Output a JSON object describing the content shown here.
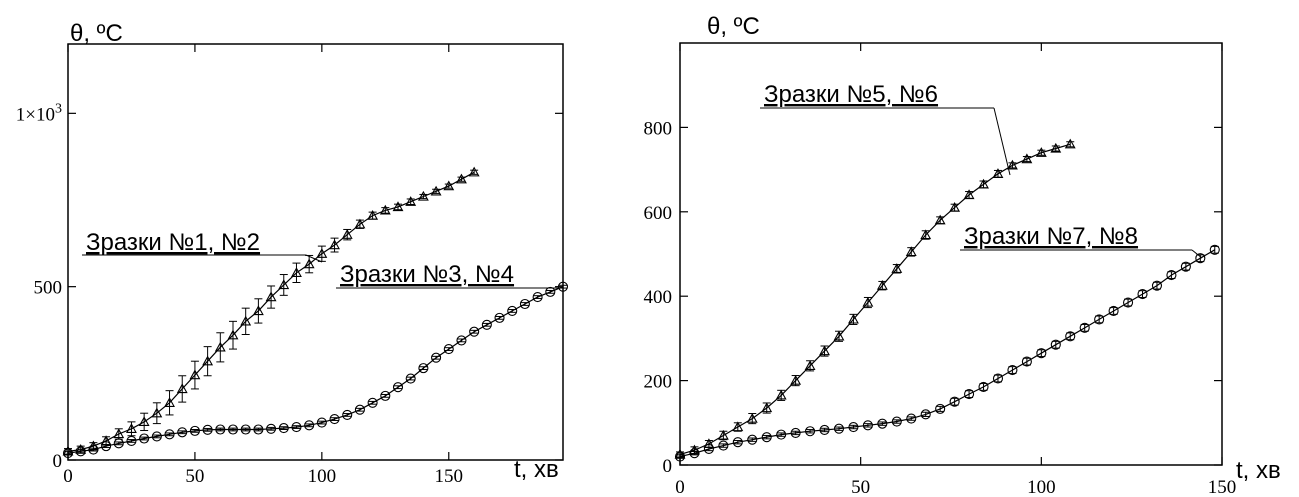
{
  "chart_data": [
    {
      "type": "line",
      "ylabel": "θ, ºC",
      "xlabel": "t, хв",
      "xlim": [
        0,
        195
      ],
      "ylim": [
        0,
        1200
      ],
      "xticks": [
        {
          "v": 0,
          "label": "0"
        },
        {
          "v": 50,
          "label": "50"
        },
        {
          "v": 100,
          "label": "100"
        },
        {
          "v": 150,
          "label": "150"
        }
      ],
      "yticks": [
        {
          "v": 0,
          "label": "0"
        },
        {
          "v": 500,
          "label": "500"
        },
        {
          "v": 1000,
          "label": "1×10",
          "sup": "3"
        }
      ],
      "grid": false,
      "series": [
        {
          "name": "Зразки №1, №2",
          "marker": "triangle",
          "x": [
            0,
            5,
            10,
            15,
            20,
            25,
            30,
            35,
            40,
            45,
            50,
            55,
            60,
            65,
            70,
            75,
            80,
            85,
            90,
            95,
            100,
            105,
            110,
            115,
            120,
            125,
            130,
            135,
            140,
            145,
            150,
            155,
            160
          ],
          "y": [
            25,
            30,
            40,
            55,
            75,
            90,
            110,
            135,
            165,
            205,
            245,
            285,
            325,
            360,
            400,
            430,
            470,
            505,
            540,
            565,
            595,
            620,
            650,
            680,
            705,
            720,
            730,
            745,
            760,
            775,
            790,
            810,
            830
          ],
          "err": [
            8,
            10,
            10,
            12,
            15,
            20,
            25,
            30,
            35,
            38,
            40,
            42,
            42,
            40,
            38,
            35,
            32,
            30,
            28,
            25,
            22,
            20,
            15,
            12,
            10,
            8,
            8,
            8,
            6,
            6,
            6,
            6,
            6
          ]
        },
        {
          "name": "Зразки №3, №4",
          "marker": "circle",
          "x": [
            0,
            5,
            10,
            15,
            20,
            25,
            30,
            35,
            40,
            45,
            50,
            55,
            60,
            65,
            70,
            75,
            80,
            85,
            90,
            95,
            100,
            105,
            110,
            115,
            120,
            125,
            130,
            135,
            140,
            145,
            150,
            155,
            160,
            165,
            170,
            175,
            180,
            185,
            190,
            195
          ],
          "y": [
            20,
            25,
            30,
            40,
            48,
            55,
            62,
            68,
            74,
            80,
            84,
            87,
            88,
            88,
            88,
            88,
            90,
            92,
            95,
            100,
            108,
            118,
            130,
            145,
            165,
            185,
            210,
            235,
            265,
            295,
            320,
            345,
            370,
            390,
            410,
            430,
            450,
            470,
            485,
            500
          ],
          "err": [
            4,
            4,
            4,
            4,
            4,
            4,
            4,
            4,
            4,
            4,
            4,
            4,
            4,
            4,
            4,
            4,
            4,
            4,
            4,
            4,
            4,
            4,
            4,
            4,
            4,
            4,
            4,
            4,
            4,
            4,
            4,
            4,
            4,
            4,
            4,
            4,
            4,
            4,
            4,
            4
          ]
        }
      ],
      "annotations": [
        {
          "text": "Зразки №1, №2"
        },
        {
          "text": "Зразки №3, №4"
        }
      ]
    },
    {
      "type": "line",
      "ylabel": "θ, ºC",
      "xlabel": "t, хв",
      "xlim": [
        0,
        150
      ],
      "ylim": [
        0,
        1000
      ],
      "xticks": [
        {
          "v": 0,
          "label": "0"
        },
        {
          "v": 50,
          "label": "50"
        },
        {
          "v": 100,
          "label": "100"
        },
        {
          "v": 150,
          "label": "150"
        }
      ],
      "yticks": [
        {
          "v": 0,
          "label": "0"
        },
        {
          "v": 200,
          "label": "200"
        },
        {
          "v": 400,
          "label": "400"
        },
        {
          "v": 600,
          "label": "600"
        },
        {
          "v": 800,
          "label": "800"
        }
      ],
      "grid": false,
      "series": [
        {
          "name": "Зразки №5, №6",
          "marker": "triangle",
          "x": [
            0,
            4,
            8,
            12,
            16,
            20,
            24,
            28,
            32,
            36,
            40,
            44,
            48,
            52,
            56,
            60,
            64,
            68,
            72,
            76,
            80,
            84,
            88,
            92,
            96,
            100,
            104,
            108
          ],
          "y": [
            25,
            35,
            50,
            70,
            90,
            110,
            135,
            165,
            200,
            235,
            270,
            305,
            345,
            385,
            425,
            465,
            505,
            545,
            580,
            610,
            640,
            665,
            690,
            710,
            725,
            740,
            750,
            760
          ],
          "err": [
            6,
            8,
            8,
            10,
            10,
            12,
            12,
            12,
            12,
            12,
            12,
            12,
            12,
            12,
            10,
            10,
            10,
            10,
            8,
            8,
            8,
            8,
            8,
            6,
            6,
            6,
            6,
            6
          ]
        },
        {
          "name": "Зразки №7, №8",
          "marker": "circle",
          "x": [
            0,
            4,
            8,
            12,
            16,
            20,
            24,
            28,
            32,
            36,
            40,
            44,
            48,
            52,
            56,
            60,
            64,
            68,
            72,
            76,
            80,
            84,
            88,
            92,
            96,
            100,
            104,
            108,
            112,
            116,
            120,
            124,
            128,
            132,
            136,
            140,
            144,
            148
          ],
          "y": [
            20,
            28,
            38,
            46,
            54,
            60,
            66,
            72,
            76,
            80,
            83,
            86,
            90,
            94,
            98,
            103,
            110,
            120,
            133,
            150,
            168,
            185,
            205,
            225,
            245,
            265,
            285,
            305,
            325,
            345,
            365,
            385,
            405,
            425,
            450,
            470,
            490,
            510
          ],
          "err": [
            4,
            4,
            4,
            4,
            4,
            4,
            4,
            4,
            4,
            4,
            4,
            4,
            4,
            4,
            4,
            4,
            4,
            5,
            6,
            8,
            8,
            8,
            8,
            8,
            8,
            8,
            8,
            8,
            8,
            8,
            8,
            8,
            8,
            8,
            8,
            8,
            8,
            8
          ]
        }
      ],
      "annotations": [
        {
          "text": "Зразки №5, №6"
        },
        {
          "text": "Зразки №7, №8"
        }
      ]
    }
  ]
}
